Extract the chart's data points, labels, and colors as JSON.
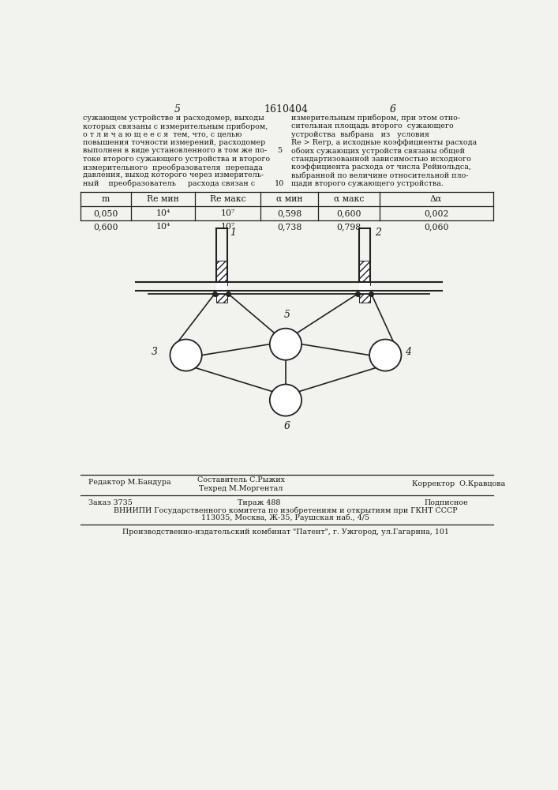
{
  "bg_color": "#f2f2ee",
  "page_number_left": "5",
  "page_number_center": "1610404",
  "page_number_right": "6",
  "text_left_lines": [
    "сужающем устройстве и расходомер, выходы",
    "которых связаны с измерительным прибором,",
    "о т л и ч а ю щ е е с я  тем, что, с целью",
    "повышения точности измерений, расходомер",
    "выполнен в виде установленного в том же по-",
    "токе второго сужающего устройства и второго",
    "измерительного  преобразователя  перепада",
    "давления, выход которого через измеритель-",
    "ный    преобразователь     расхода связан с"
  ],
  "line_number_5": "5",
  "line_number_10": "10",
  "text_right_lines": [
    "измерительным прибором, при этом отно-",
    "сительная площадь второго  сужающего",
    "устройства  выбрана   из   условия",
    "Re > Reгр, а исходные коэффициенты расхода",
    "обоих сужающих устройств связаны общей",
    "стандартизованной зависимостью исходного",
    "коэффициента расхода от числа Рейнольдса,",
    "выбранной по величине относительной пло-",
    "щади второго сужающего устройства."
  ],
  "table_headers": [
    "m",
    "Re мин",
    "Re макс",
    "α мин",
    "α макс",
    "Δα"
  ],
  "table_row1_col1": "0,050",
  "table_row1_col2": "10⁴",
  "table_row1_col3": "10⁷",
  "table_row1_col4": "0,598",
  "table_row1_col5": "0,600",
  "table_row1_col6": "0,002",
  "table_row2_col1": "0,600",
  "table_row2_col2": "10⁴",
  "table_row2_col3": "10⁷",
  "table_row2_col4": "0,738",
  "table_row2_col5": "0,798",
  "table_row2_col6": "0,060",
  "diag_lbl1": "1",
  "diag_lbl2": "2",
  "diag_lbl3": "3",
  "diag_lbl4": "4",
  "diag_lbl5": "5",
  "diag_lbl6": "6",
  "footer_editor": "Редактор М.Бандура",
  "footer_composer": "Составитель С.Рыжих",
  "footer_techred": "Техред М.Моргентал",
  "footer_corrector": "Корректор  О.Кравцова",
  "footer_order": "Заказ 3735",
  "footer_edition": "Тираж 488",
  "footer_subscription": "Подписное",
  "footer_vniipи": "ВНИИПИ Государственного комитета по изобретениям и открытиям при ГКНТ СССР",
  "footer_address": "113035, Москва, Ж-35, Раушская наб., 4/5",
  "footer_plant": "Производственно-издательский комбинат \"Патент\", г. Ужгород, ул.Гагарина, 101",
  "text_color": "#1a1a1a",
  "line_color": "#222222"
}
